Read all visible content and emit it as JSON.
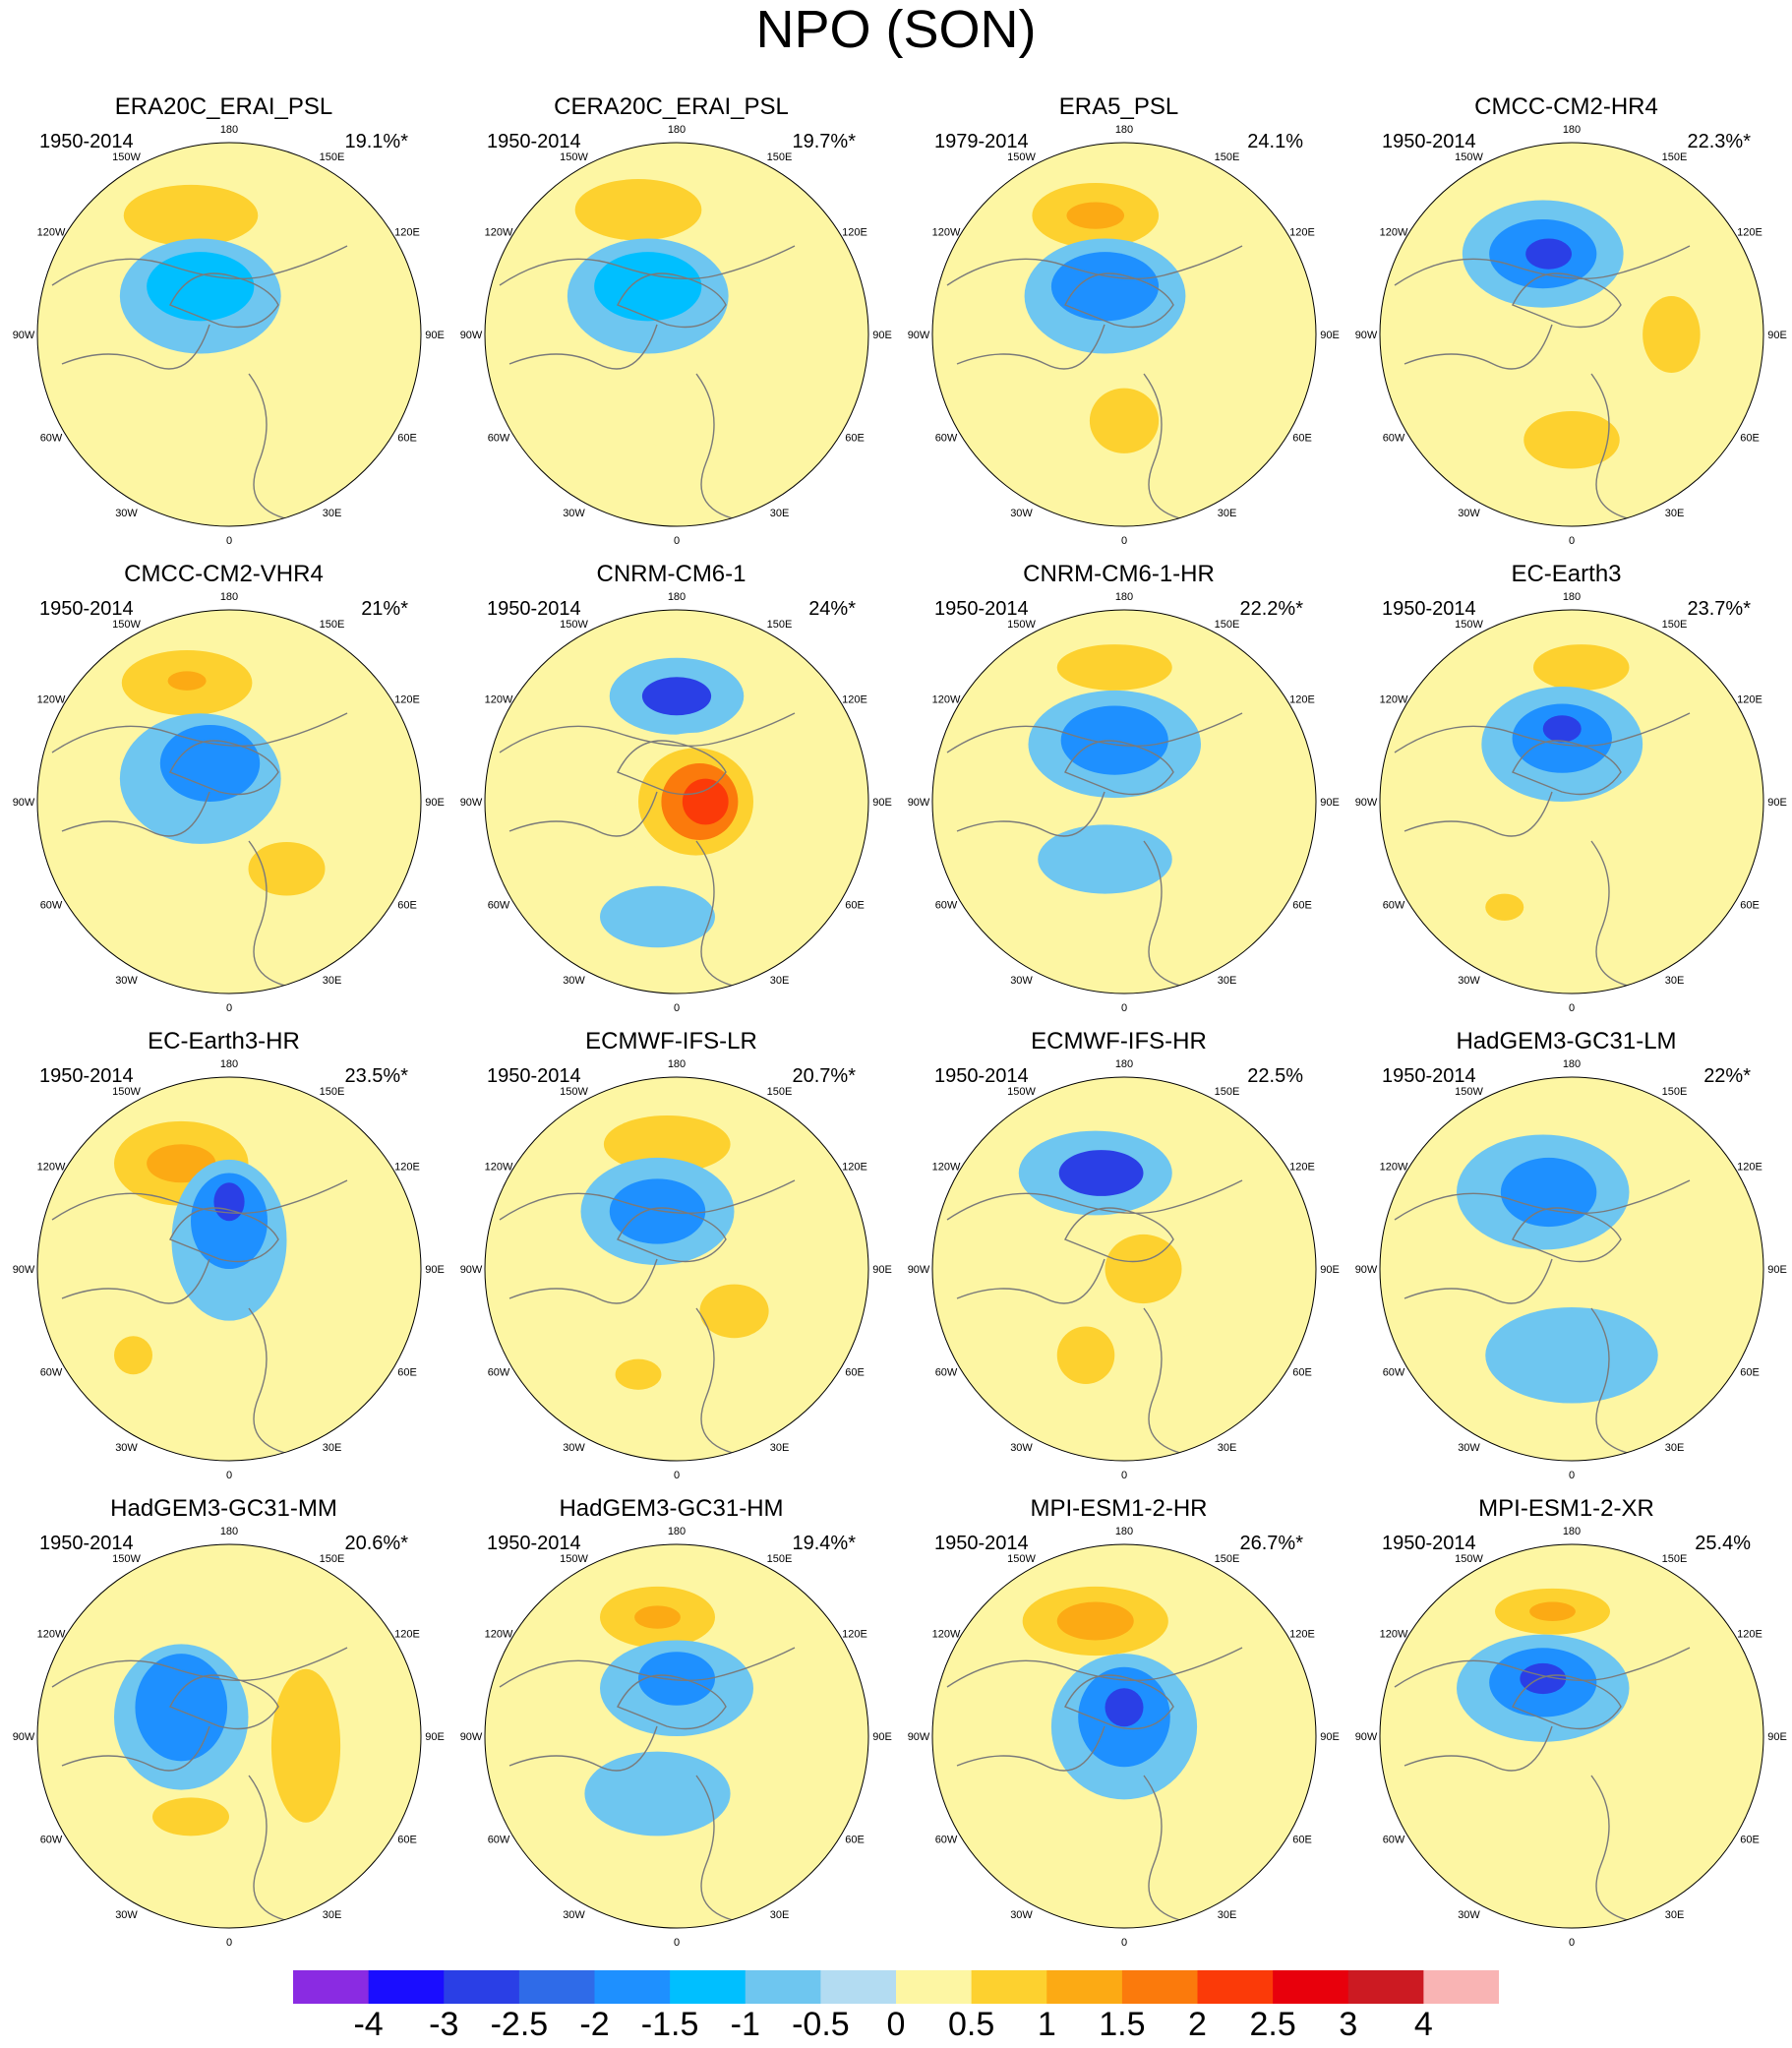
{
  "figure": {
    "title": "NPO (SON)"
  },
  "panels": [
    {
      "title": "ERA20C_ERAI_PSL",
      "period": "1950-2014",
      "variance": "19.1%*"
    },
    {
      "title": "CERA20C_ERAI_PSL",
      "period": "1950-2014",
      "variance": "19.7%*"
    },
    {
      "title": "ERA5_PSL",
      "period": "1979-2014",
      "variance": "24.1%"
    },
    {
      "title": "CMCC-CM2-HR4",
      "period": "1950-2014",
      "variance": "22.3%*"
    },
    {
      "title": "CMCC-CM2-VHR4",
      "period": "1950-2014",
      "variance": "21%*"
    },
    {
      "title": "CNRM-CM6-1",
      "period": "1950-2014",
      "variance": "24%*"
    },
    {
      "title": "CNRM-CM6-1-HR",
      "period": "1950-2014",
      "variance": "22.2%*"
    },
    {
      "title": "EC-Earth3",
      "period": "1950-2014",
      "variance": "23.7%*"
    },
    {
      "title": "EC-Earth3-HR",
      "period": "1950-2014",
      "variance": "23.5%*"
    },
    {
      "title": "ECMWF-IFS-LR",
      "period": "1950-2014",
      "variance": "20.7%*"
    },
    {
      "title": "ECMWF-IFS-HR",
      "period": "1950-2014",
      "variance": "22.5%"
    },
    {
      "title": "HadGEM3-GC31-LM",
      "period": "1950-2014",
      "variance": "22%*"
    },
    {
      "title": "HadGEM3-GC31-MM",
      "period": "1950-2014",
      "variance": "20.6%*"
    },
    {
      "title": "HadGEM3-GC31-HM",
      "period": "1950-2014",
      "variance": "19.4%*"
    },
    {
      "title": "MPI-ESM1-2-HR",
      "period": "1950-2014",
      "variance": "26.7%*"
    },
    {
      "title": "MPI-ESM1-2-XR",
      "period": "1950-2014",
      "variance": "25.4%"
    }
  ],
  "longitude_labels": [
    "180",
    "150W",
    "150E",
    "120W",
    "120E",
    "90W",
    "90E",
    "60W",
    "60E",
    "30W",
    "30E",
    "0"
  ],
  "colorbar": {
    "labels": [
      "-4",
      "-3",
      "-2.5",
      "-2",
      "-1.5",
      "-1",
      "-0.5",
      "0",
      "0.5",
      "1",
      "1.5",
      "2",
      "2.5",
      "3",
      "4"
    ],
    "colors": [
      "#8a2be2",
      "#1a0dff",
      "#2a3fe6",
      "#2f6be8",
      "#1e90ff",
      "#00bfff",
      "#6ec6f0",
      "#b3dcf2",
      "#fdf6a3",
      "#fdd12f",
      "#fcaa14",
      "#fb7a0c",
      "#fb3a08",
      "#e8000c",
      "#cc1a22",
      "#f9b4b4"
    ]
  },
  "chart_data": {
    "type": "heatmap",
    "title": "NPO (SON)",
    "description_of_values": "polar stereographic SLP anomaly maps (contour levels)",
    "levels": [
      -4,
      -3,
      -2.5,
      -2,
      -1.5,
      -1,
      -0.5,
      0,
      0.5,
      1,
      1.5,
      2,
      2.5,
      3,
      4
    ],
    "panels": [
      {
        "name": "ERA20C_ERAI_PSL",
        "low_center_min": -2.0,
        "high_center_max": 1.0
      },
      {
        "name": "CERA20C_ERAI_PSL",
        "low_center_min": -2.0,
        "high_center_max": 1.0
      },
      {
        "name": "ERA5_PSL",
        "low_center_min": -2.5,
        "high_center_max": 1.5
      },
      {
        "name": "CMCC-CM2-HR4",
        "low_center_min": -3.0,
        "high_center_max": 1.0
      },
      {
        "name": "CMCC-CM2-VHR4",
        "low_center_min": -2.5,
        "high_center_max": 2.0
      },
      {
        "name": "CNRM-CM6-1",
        "low_center_min": -2.5,
        "high_center_max": 3.0
      },
      {
        "name": "CNRM-CM6-1-HR",
        "low_center_min": -2.5,
        "high_center_max": 1.0
      },
      {
        "name": "EC-Earth3",
        "low_center_min": -3.0,
        "high_center_max": 1.0
      },
      {
        "name": "EC-Earth3-HR",
        "low_center_min": -3.0,
        "high_center_max": 1.5
      },
      {
        "name": "ECMWF-IFS-LR",
        "low_center_min": -2.5,
        "high_center_max": 1.5
      },
      {
        "name": "ECMWF-IFS-HR",
        "low_center_min": -3.0,
        "high_center_max": 1.5
      },
      {
        "name": "HadGEM3-GC31-LM",
        "low_center_min": -2.5,
        "high_center_max": 0.5
      },
      {
        "name": "HadGEM3-GC31-MM",
        "low_center_min": -2.5,
        "high_center_max": 1.5
      },
      {
        "name": "HadGEM3-GC31-HM",
        "low_center_min": -2.5,
        "high_center_max": 2.0
      },
      {
        "name": "MPI-ESM1-2-HR",
        "low_center_min": -3.0,
        "high_center_max": 2.0
      },
      {
        "name": "MPI-ESM1-2-XR",
        "low_center_min": -3.0,
        "high_center_max": 2.0
      }
    ]
  }
}
